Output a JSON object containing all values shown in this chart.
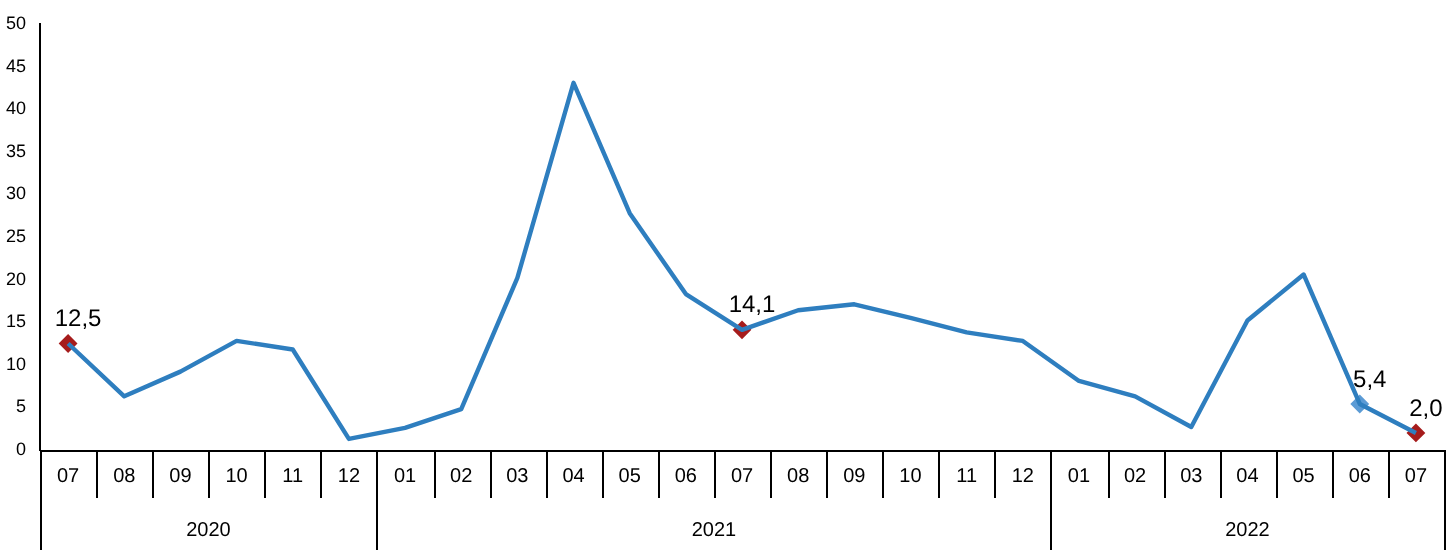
{
  "chart_data": {
    "type": "line",
    "categories": [
      "07",
      "08",
      "09",
      "10",
      "11",
      "12",
      "01",
      "02",
      "03",
      "04",
      "05",
      "06",
      "07",
      "08",
      "09",
      "10",
      "11",
      "12",
      "01",
      "02",
      "03",
      "04",
      "05",
      "06",
      "07"
    ],
    "series": [
      {
        "color": "#2e7ebf",
        "marker": "none",
        "values": [
          12.5,
          6.3,
          9.2,
          12.8,
          11.8,
          1.3,
          2.6,
          4.8,
          20.2,
          43.1,
          27.8,
          18.3,
          14.1,
          16.4,
          17.1,
          15.5,
          13.8,
          12.8,
          8.1,
          6.3,
          2.7,
          15.2,
          20.6,
          5.4,
          2.0
        ]
      },
      {
        "type": "scatter",
        "marker": "diamond",
        "values": [
          12.5,
          null,
          null,
          null,
          null,
          null,
          null,
          null,
          null,
          null,
          null,
          null,
          14.1,
          null,
          null,
          null,
          null,
          null,
          null,
          null,
          null,
          null,
          null,
          5.4,
          2.0
        ],
        "value_labels": [
          "12,5",
          null,
          null,
          null,
          null,
          null,
          null,
          null,
          null,
          null,
          null,
          null,
          "14,1",
          null,
          null,
          null,
          null,
          null,
          null,
          null,
          null,
          null,
          null,
          "5,4",
          "2,0"
        ],
        "colors": [
          "#a61c1c",
          null,
          null,
          null,
          null,
          null,
          null,
          null,
          null,
          null,
          null,
          null,
          "#a61c1c",
          null,
          null,
          null,
          null,
          null,
          null,
          null,
          null,
          null,
          null,
          "#5b9bd5",
          "#a61c1c"
        ]
      }
    ],
    "annotations": [
      "2020",
      "2021",
      "2022"
    ],
    "ylim": [
      0,
      50
    ],
    "yticks": [
      0,
      5,
      10,
      15,
      20,
      25,
      30,
      35,
      40,
      45,
      50
    ],
    "grid": false,
    "legend": false,
    "line_style": "solid"
  }
}
